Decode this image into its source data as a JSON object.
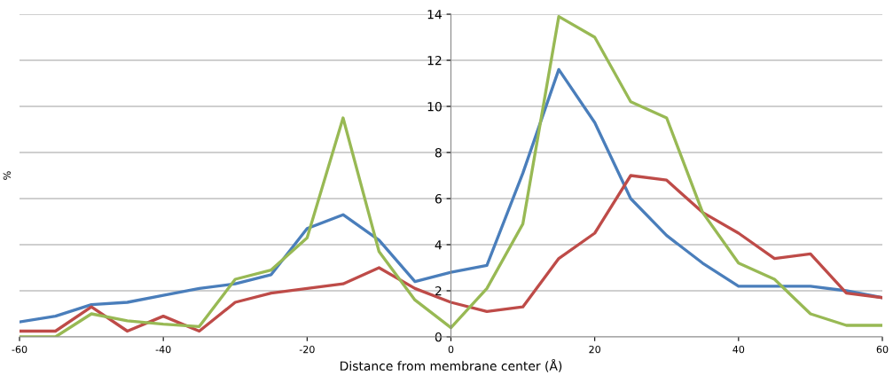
{
  "chart_data": {
    "type": "line",
    "xlabel": "Distance from membrane center (Å)",
    "ylabel": "%",
    "x": [
      -60,
      -55,
      -50,
      -45,
      -40,
      -35,
      -30,
      -25,
      -20,
      -15,
      -10,
      -5,
      0,
      5,
      10,
      15,
      20,
      25,
      30,
      35,
      40,
      45,
      50,
      55,
      60
    ],
    "series": [
      {
        "color": "#4a7ebb",
        "values": [
          0.65,
          0.9,
          1.4,
          1.5,
          1.8,
          2.1,
          2.3,
          2.7,
          4.7,
          5.3,
          4.2,
          2.4,
          2.8,
          3.1,
          7.1,
          11.6,
          9.3,
          6.0,
          4.4,
          3.2,
          2.2,
          2.2,
          2.2,
          2.0,
          1.7
        ]
      },
      {
        "color": "#be4b48",
        "values": [
          0.25,
          0.25,
          1.3,
          0.25,
          0.9,
          0.25,
          1.5,
          1.9,
          2.1,
          2.3,
          3.0,
          2.1,
          1.5,
          1.1,
          1.3,
          3.4,
          4.5,
          7.0,
          6.8,
          5.4,
          4.5,
          3.4,
          3.6,
          1.9,
          1.7
        ]
      },
      {
        "color": "#98b954",
        "values": [
          0,
          0,
          1.0,
          0.7,
          0.55,
          0.45,
          2.5,
          2.9,
          4.3,
          9.5,
          3.7,
          1.6,
          0.4,
          2.1,
          4.9,
          13.9,
          13.0,
          10.2,
          9.5,
          5.4,
          3.2,
          2.5,
          1.0,
          0.5,
          0.5
        ]
      }
    ],
    "xlim": [
      -60,
      60
    ],
    "xticks": [
      -60,
      -40,
      -20,
      0,
      20,
      40,
      60
    ],
    "ylim": [
      0,
      14
    ],
    "yticks": [
      0,
      2,
      4,
      6,
      8,
      10,
      12,
      14
    ],
    "grid": "y",
    "marker": "none",
    "line_style": "solid",
    "legend": false
  }
}
